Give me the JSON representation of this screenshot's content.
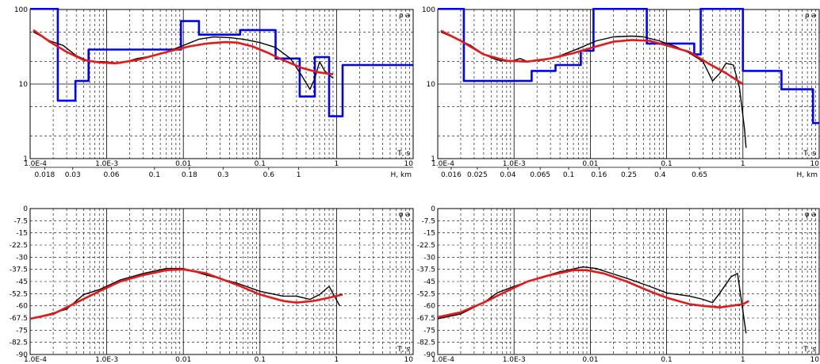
{
  "chart_data": [
    {
      "id": "rho-left",
      "type": "line",
      "ylabel": "ρ a",
      "xlabel": "T, s",
      "x_scale": "log",
      "y_scale": "log",
      "xlim": [
        0.0001,
        10
      ],
      "ylim": [
        1,
        100
      ],
      "x_tick_labels": [
        "1.0E-4",
        "1.0E-3",
        "0.01",
        "0.1",
        "1",
        "10"
      ],
      "y_tick_labels": [
        "1",
        "10",
        "100"
      ],
      "depth_axis": {
        "label": "H, km",
        "ticks": [
          {
            "label": "0.018",
            "T": 0.000155
          },
          {
            "label": "0.03",
            "T": 0.00036
          },
          {
            "label": "0.06",
            "T": 0.00115
          },
          {
            "label": "0.1",
            "T": 0.0042
          },
          {
            "label": "0.18",
            "T": 0.012
          },
          {
            "label": "0.3",
            "T": 0.033
          },
          {
            "label": "0.6",
            "T": 0.13
          },
          {
            "label": "1",
            "T": 0.32
          }
        ]
      },
      "series": [
        {
          "color": "#0000ff",
          "width": 2.6,
          "step": true,
          "points": [
            [
              0.0001,
              120
            ],
            [
              0.00023,
              120
            ],
            [
              0.00023,
              6
            ],
            [
              0.00039,
              6
            ],
            [
              0.00039,
              11
            ],
            [
              0.00058,
              11
            ],
            [
              0.00058,
              29
            ],
            [
              0.0093,
              29
            ],
            [
              0.0093,
              70
            ],
            [
              0.016,
              70
            ],
            [
              0.016,
              46
            ],
            [
              0.055,
              46
            ],
            [
              0.055,
              53
            ],
            [
              0.16,
              53
            ],
            [
              0.16,
              22
            ],
            [
              0.33,
              22
            ],
            [
              0.33,
              6.8
            ],
            [
              0.52,
              6.8
            ],
            [
              0.52,
              23
            ],
            [
              0.8,
              23
            ],
            [
              0.8,
              3.7
            ],
            [
              1.2,
              3.7
            ],
            [
              1.2,
              18
            ],
            [
              12,
              18
            ]
          ]
        },
        {
          "color": "#000000",
          "width": 1.4,
          "step": false,
          "points": [
            [
              0.00011,
              50
            ],
            [
              0.00018,
              38
            ],
            [
              0.00027,
              33
            ],
            [
              0.0004,
              24
            ],
            [
              0.0006,
              20
            ],
            [
              0.0009,
              20
            ],
            [
              0.0015,
              19
            ],
            [
              0.0025,
              22
            ],
            [
              0.004,
              24
            ],
            [
              0.006,
              27
            ],
            [
              0.01,
              33
            ],
            [
              0.016,
              40
            ],
            [
              0.025,
              43
            ],
            [
              0.04,
              42
            ],
            [
              0.06,
              40
            ],
            [
              0.1,
              36
            ],
            [
              0.16,
              31
            ],
            [
              0.25,
              22
            ],
            [
              0.35,
              13
            ],
            [
              0.45,
              8.5
            ],
            [
              0.52,
              12
            ],
            [
              0.6,
              20
            ],
            [
              0.7,
              15
            ],
            [
              0.9,
              12
            ]
          ]
        },
        {
          "color": "#e31a1c",
          "width": 2.6,
          "step": false,
          "points": [
            [
              0.00011,
              53
            ],
            [
              0.00018,
              37
            ],
            [
              0.0003,
              27
            ],
            [
              0.0005,
              21
            ],
            [
              0.0008,
              19.5
            ],
            [
              0.0013,
              19
            ],
            [
              0.0025,
              21
            ],
            [
              0.004,
              24
            ],
            [
              0.007,
              28
            ],
            [
              0.012,
              32
            ],
            [
              0.02,
              35
            ],
            [
              0.035,
              36.5
            ],
            [
              0.05,
              36
            ],
            [
              0.08,
              32
            ],
            [
              0.13,
              26
            ],
            [
              0.2,
              21
            ],
            [
              0.35,
              16.5
            ],
            [
              0.55,
              14.5
            ],
            [
              0.9,
              13.5
            ]
          ]
        }
      ]
    },
    {
      "id": "phi-left",
      "type": "line",
      "ylabel": "φ a",
      "xlabel": "T, s",
      "x_scale": "log",
      "y_scale": "linear",
      "xlim": [
        0.0001,
        10
      ],
      "ylim": [
        -90,
        0
      ],
      "x_tick_labels": [
        "1.0E-4",
        "1.0E-3",
        "0.01",
        "0.1",
        "1",
        "10"
      ],
      "y_ticks": [
        0,
        -7.5,
        -15,
        -22.5,
        -30,
        -37.5,
        -45,
        -52.5,
        -60,
        -67.5,
        -75,
        -82.5,
        -90
      ],
      "y_tick_labels": [
        "0",
        "-7.5",
        "-15",
        "-22.5",
        "-30",
        "-37.5",
        "-45",
        "-52.5",
        "-60",
        "-67.5",
        "-75",
        "-82.5",
        "-90"
      ],
      "series": [
        {
          "color": "#000000",
          "width": 1.4,
          "step": false,
          "points": [
            [
              0.0001,
              -68
            ],
            [
              0.00018,
              -65
            ],
            [
              0.0003,
              -62
            ],
            [
              0.0005,
              -53
            ],
            [
              0.0008,
              -50
            ],
            [
              0.0015,
              -44
            ],
            [
              0.003,
              -40
            ],
            [
              0.006,
              -37
            ],
            [
              0.01,
              -37
            ],
            [
              0.02,
              -41
            ],
            [
              0.05,
              -46
            ],
            [
              0.1,
              -51
            ],
            [
              0.2,
              -54
            ],
            [
              0.3,
              -54
            ],
            [
              0.45,
              -56
            ],
            [
              0.6,
              -53
            ],
            [
              0.8,
              -48
            ],
            [
              1.1,
              -60
            ]
          ]
        },
        {
          "color": "#e31a1c",
          "width": 2.6,
          "step": false,
          "points": [
            [
              0.0001,
              -68
            ],
            [
              0.0002,
              -65
            ],
            [
              0.0004,
              -58
            ],
            [
              0.0008,
              -51
            ],
            [
              0.0015,
              -45
            ],
            [
              0.003,
              -41
            ],
            [
              0.006,
              -38
            ],
            [
              0.01,
              -37.5
            ],
            [
              0.02,
              -40
            ],
            [
              0.05,
              -47
            ],
            [
              0.1,
              -53
            ],
            [
              0.2,
              -57
            ],
            [
              0.3,
              -58
            ],
            [
              0.5,
              -57
            ],
            [
              0.8,
              -55
            ],
            [
              1.2,
              -53
            ]
          ]
        }
      ]
    },
    {
      "id": "rho-right",
      "type": "line",
      "ylabel": "ρ a",
      "xlabel": "T, s",
      "x_scale": "log",
      "y_scale": "log",
      "xlim": [
        0.0001,
        10
      ],
      "ylim": [
        1,
        100
      ],
      "x_tick_labels": [
        "1.0E-4",
        "1.0E-3",
        "0.01",
        "0.1",
        "1",
        "10"
      ],
      "y_tick_labels": [
        "1",
        "10",
        "100"
      ],
      "depth_axis": {
        "label": "H, km",
        "ticks": [
          {
            "label": "0.016",
            "T": 0.00015
          },
          {
            "label": "0.025",
            "T": 0.00033
          },
          {
            "label": "0.04",
            "T": 0.00083
          },
          {
            "label": "0.065",
            "T": 0.0022
          },
          {
            "label": "0.1",
            "T": 0.0052
          },
          {
            "label": "0.16",
            "T": 0.013
          },
          {
            "label": "0.25",
            "T": 0.032
          },
          {
            "label": "0.4",
            "T": 0.082
          },
          {
            "label": "0.65",
            "T": 0.27
          }
        ]
      },
      "series": [
        {
          "color": "#0000ff",
          "width": 2.6,
          "step": true,
          "points": [
            [
              0.0001,
              120
            ],
            [
              0.00022,
              120
            ],
            [
              0.00022,
              11
            ],
            [
              0.0017,
              11
            ],
            [
              0.0017,
              15
            ],
            [
              0.0035,
              15
            ],
            [
              0.0035,
              18
            ],
            [
              0.0075,
              18
            ],
            [
              0.0075,
              28
            ],
            [
              0.011,
              28
            ],
            [
              0.011,
              120
            ],
            [
              0.055,
              120
            ],
            [
              0.055,
              35
            ],
            [
              0.23,
              35
            ],
            [
              0.23,
              25
            ],
            [
              0.28,
              25
            ],
            [
              0.28,
              120
            ],
            [
              1.0,
              120
            ],
            [
              1.0,
              15
            ],
            [
              3.2,
              15
            ],
            [
              3.2,
              8.5
            ],
            [
              8.3,
              8.5
            ],
            [
              8.3,
              3
            ],
            [
              12,
              3
            ]
          ]
        },
        {
          "color": "#000000",
          "width": 1.4,
          "step": false,
          "points": [
            [
              0.00011,
              50
            ],
            [
              0.00018,
              40
            ],
            [
              0.00027,
              33
            ],
            [
              0.0004,
              25
            ],
            [
              0.0006,
              21
            ],
            [
              0.0009,
              20
            ],
            [
              0.0012,
              22
            ],
            [
              0.0015,
              20
            ],
            [
              0.0025,
              21
            ],
            [
              0.004,
              24
            ],
            [
              0.007,
              30
            ],
            [
              0.012,
              38
            ],
            [
              0.02,
              43
            ],
            [
              0.035,
              44
            ],
            [
              0.05,
              43
            ],
            [
              0.08,
              38
            ],
            [
              0.13,
              32
            ],
            [
              0.2,
              26
            ],
            [
              0.3,
              20
            ],
            [
              0.4,
              11
            ],
            [
              0.5,
              14
            ],
            [
              0.6,
              19
            ],
            [
              0.75,
              18
            ],
            [
              0.9,
              9
            ],
            [
              1.05,
              2.5
            ],
            [
              1.1,
              1.4
            ]
          ]
        },
        {
          "color": "#e31a1c",
          "width": 2.6,
          "step": false,
          "points": [
            [
              0.00011,
              52
            ],
            [
              0.0002,
              38
            ],
            [
              0.0004,
              25
            ],
            [
              0.0008,
              20.5
            ],
            [
              0.0015,
              20
            ],
            [
              0.003,
              22
            ],
            [
              0.006,
              26
            ],
            [
              0.012,
              32
            ],
            [
              0.02,
              37
            ],
            [
              0.035,
              39
            ],
            [
              0.06,
              38
            ],
            [
              0.1,
              33
            ],
            [
              0.2,
              27
            ],
            [
              0.35,
              19
            ],
            [
              0.6,
              14
            ],
            [
              1.0,
              10
            ]
          ]
        }
      ]
    },
    {
      "id": "phi-right",
      "type": "line",
      "ylabel": "φ a",
      "xlabel": "T, s",
      "x_scale": "log",
      "y_scale": "linear",
      "xlim": [
        0.0001,
        10
      ],
      "ylim": [
        -90,
        0
      ],
      "x_tick_labels": [
        "1.0E-4",
        "1.0E-3",
        "0.01",
        "0.1",
        "1",
        "10"
      ],
      "y_ticks": [
        0,
        -7.5,
        -15,
        -22.5,
        -30,
        -37.5,
        -45,
        -52.5,
        -60,
        -67.5,
        -75,
        -82.5,
        -90
      ],
      "y_tick_labels": [
        "0",
        "-7.5",
        "-15",
        "-22.5",
        "-30",
        "-37.5",
        "-45",
        "-52.5",
        "-60",
        "-67.5",
        "-75",
        "-82.5",
        "-90"
      ],
      "series": [
        {
          "color": "#000000",
          "width": 1.4,
          "step": false,
          "points": [
            [
              0.0001,
              -68
            ],
            [
              0.0002,
              -65
            ],
            [
              0.0004,
              -58
            ],
            [
              0.0006,
              -52
            ],
            [
              0.001,
              -48
            ],
            [
              0.002,
              -43
            ],
            [
              0.004,
              -39
            ],
            [
              0.008,
              -36
            ],
            [
              0.012,
              -37
            ],
            [
              0.03,
              -43
            ],
            [
              0.06,
              -48
            ],
            [
              0.1,
              -52
            ],
            [
              0.2,
              -54
            ],
            [
              0.3,
              -56
            ],
            [
              0.4,
              -58
            ],
            [
              0.5,
              -52
            ],
            [
              0.7,
              -42
            ],
            [
              0.85,
              -40
            ],
            [
              1.1,
              -77
            ]
          ]
        },
        {
          "color": "#e31a1c",
          "width": 2.6,
          "step": false,
          "points": [
            [
              0.0001,
              -67
            ],
            [
              0.0002,
              -64
            ],
            [
              0.0004,
              -58
            ],
            [
              0.0008,
              -51
            ],
            [
              0.0015,
              -45
            ],
            [
              0.003,
              -41
            ],
            [
              0.006,
              -38
            ],
            [
              0.009,
              -38
            ],
            [
              0.015,
              -40
            ],
            [
              0.03,
              -45
            ],
            [
              0.06,
              -51
            ],
            [
              0.1,
              -55
            ],
            [
              0.2,
              -59
            ],
            [
              0.3,
              -60
            ],
            [
              0.5,
              -61
            ],
            [
              0.7,
              -60
            ],
            [
              1.0,
              -59
            ],
            [
              1.2,
              -57
            ]
          ]
        }
      ]
    }
  ]
}
